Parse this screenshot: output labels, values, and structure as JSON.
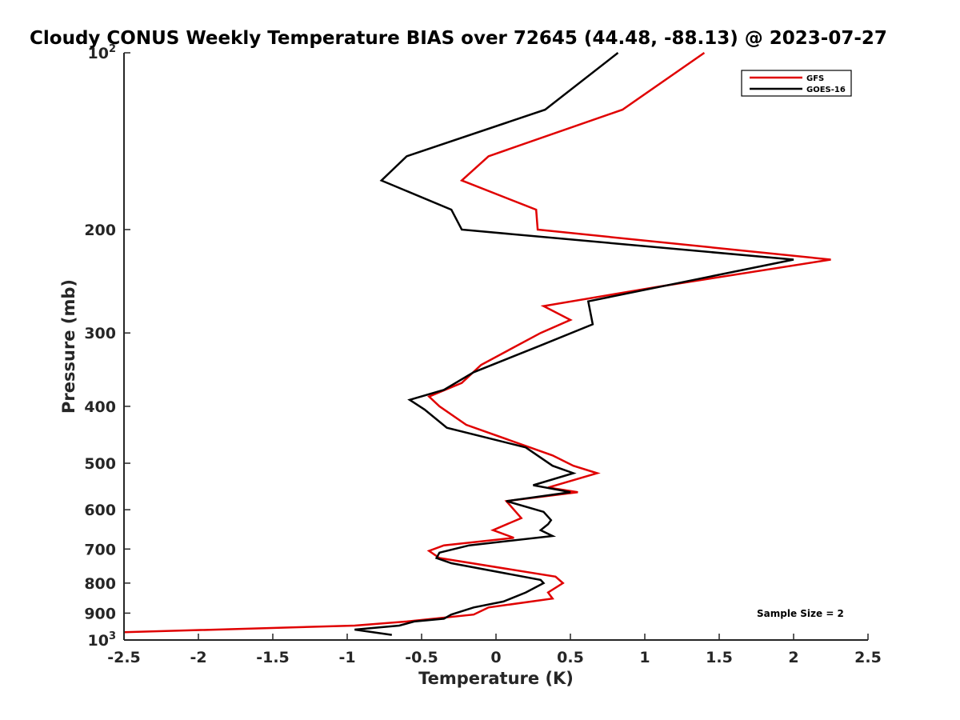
{
  "chart_data": {
    "type": "line",
    "title": "Cloudy CONUS Weekly Temperature BIAS over 72645 (44.48, -88.13) @ 2023-07-27",
    "xlabel": "Temperature (K)",
    "ylabel": "Pressure (mb)",
    "xlim": [
      -2.5,
      2.5
    ],
    "ylim": [
      100,
      1000
    ],
    "yscale": "log",
    "y_reversed": true,
    "grid": false,
    "legend_position": "top-right",
    "x_ticks": [
      -2.5,
      -2,
      -1.5,
      -1,
      -0.5,
      0,
      0.5,
      1,
      1.5,
      2,
      2.5
    ],
    "x_tick_labels": [
      "-2.5",
      "-2",
      "-1.5",
      "-1",
      "-0.5",
      "0",
      "0.5",
      "1",
      "1.5",
      "2",
      "2.5"
    ],
    "y_ticks": [
      100,
      200,
      300,
      400,
      500,
      600,
      700,
      800,
      900,
      1000
    ],
    "y_tick_labels": [
      {
        "base": "10",
        "exp": "2"
      },
      {
        "base": "200",
        "exp": ""
      },
      {
        "base": "300",
        "exp": ""
      },
      {
        "base": "400",
        "exp": ""
      },
      {
        "base": "500",
        "exp": ""
      },
      {
        "base": "600",
        "exp": ""
      },
      {
        "base": "700",
        "exp": ""
      },
      {
        "base": "800",
        "exp": ""
      },
      {
        "base": "900",
        "exp": ""
      },
      {
        "base": "10",
        "exp": "3"
      }
    ],
    "annotation": "Sample Size = 2",
    "series": [
      {
        "name": "GFS",
        "color": "#e00000",
        "points": [
          [
            1.4,
            100
          ],
          [
            0.85,
            125
          ],
          [
            -0.05,
            150
          ],
          [
            -0.23,
            165
          ],
          [
            0.27,
            185
          ],
          [
            0.28,
            200
          ],
          [
            2.25,
            225
          ],
          [
            1.1,
            250
          ],
          [
            0.32,
            270
          ],
          [
            0.5,
            285
          ],
          [
            0.3,
            300
          ],
          [
            -0.1,
            340
          ],
          [
            -0.23,
            365
          ],
          [
            -0.45,
            385
          ],
          [
            -0.38,
            400
          ],
          [
            -0.2,
            430
          ],
          [
            0.38,
            485
          ],
          [
            0.52,
            505
          ],
          [
            0.68,
            520
          ],
          [
            0.35,
            550
          ],
          [
            0.55,
            560
          ],
          [
            0.07,
            580
          ],
          [
            0.17,
            620
          ],
          [
            -0.02,
            650
          ],
          [
            0.12,
            670
          ],
          [
            -0.35,
            690
          ],
          [
            -0.45,
            705
          ],
          [
            -0.38,
            725
          ],
          [
            0.4,
            780
          ],
          [
            0.45,
            800
          ],
          [
            0.35,
            830
          ],
          [
            0.38,
            850
          ],
          [
            -0.05,
            880
          ],
          [
            -0.15,
            905
          ],
          [
            -0.6,
            930
          ],
          [
            -0.95,
            945
          ],
          [
            -2.5,
            970
          ]
        ]
      },
      {
        "name": "GOES-16",
        "color": "#000000",
        "points": [
          [
            0.82,
            100
          ],
          [
            0.33,
            125
          ],
          [
            -0.6,
            150
          ],
          [
            -0.77,
            165
          ],
          [
            -0.3,
            185
          ],
          [
            -0.23,
            200
          ],
          [
            2.0,
            225
          ],
          [
            0.62,
            265
          ],
          [
            0.65,
            290
          ],
          [
            0.3,
            315
          ],
          [
            -0.15,
            350
          ],
          [
            -0.35,
            375
          ],
          [
            -0.58,
            390
          ],
          [
            -0.48,
            405
          ],
          [
            -0.33,
            435
          ],
          [
            0.2,
            470
          ],
          [
            0.38,
            505
          ],
          [
            0.52,
            520
          ],
          [
            0.25,
            545
          ],
          [
            0.5,
            560
          ],
          [
            0.07,
            580
          ],
          [
            0.32,
            605
          ],
          [
            0.37,
            625
          ],
          [
            0.35,
            635
          ],
          [
            0.3,
            650
          ],
          [
            0.38,
            665
          ],
          [
            -0.18,
            690
          ],
          [
            -0.38,
            710
          ],
          [
            -0.4,
            725
          ],
          [
            -0.3,
            740
          ],
          [
            0.3,
            790
          ],
          [
            0.32,
            800
          ],
          [
            0.2,
            830
          ],
          [
            0.05,
            860
          ],
          [
            -0.15,
            880
          ],
          [
            -0.3,
            905
          ],
          [
            -0.35,
            920
          ],
          [
            -0.55,
            930
          ],
          [
            -0.65,
            945
          ],
          [
            -0.95,
            960
          ],
          [
            -0.7,
            980
          ]
        ]
      }
    ]
  }
}
